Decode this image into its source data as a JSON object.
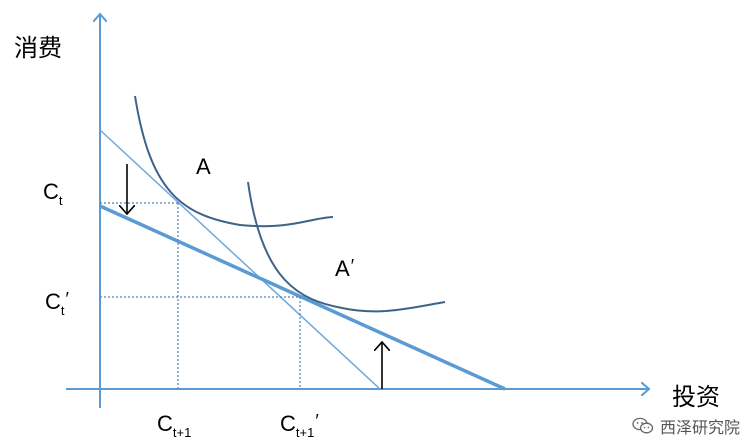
{
  "axes": {
    "y_label": "消费",
    "x_label": "投资"
  },
  "points": {
    "A": "A",
    "A_prime": "A",
    "prime_mark": "′"
  },
  "ticks": {
    "y": [
      {
        "base": "C",
        "sub": "t",
        "prime": ""
      },
      {
        "base": "C",
        "sub": "t",
        "prime": "′"
      }
    ],
    "x": [
      {
        "base": "C",
        "sub": "t+1",
        "prime": ""
      },
      {
        "base": "C",
        "sub": "t+1",
        "prime": "′"
      }
    ]
  },
  "watermark": {
    "text": "西泽研究院",
    "icon": "wechat-icon"
  },
  "colors": {
    "axis": "#5b9bd5",
    "thin_line": "#6fa8dc",
    "thick_line": "#5b9bd5",
    "curve": "#3f6388",
    "dotted": "#4f81bd",
    "arrow": "#000000"
  }
}
